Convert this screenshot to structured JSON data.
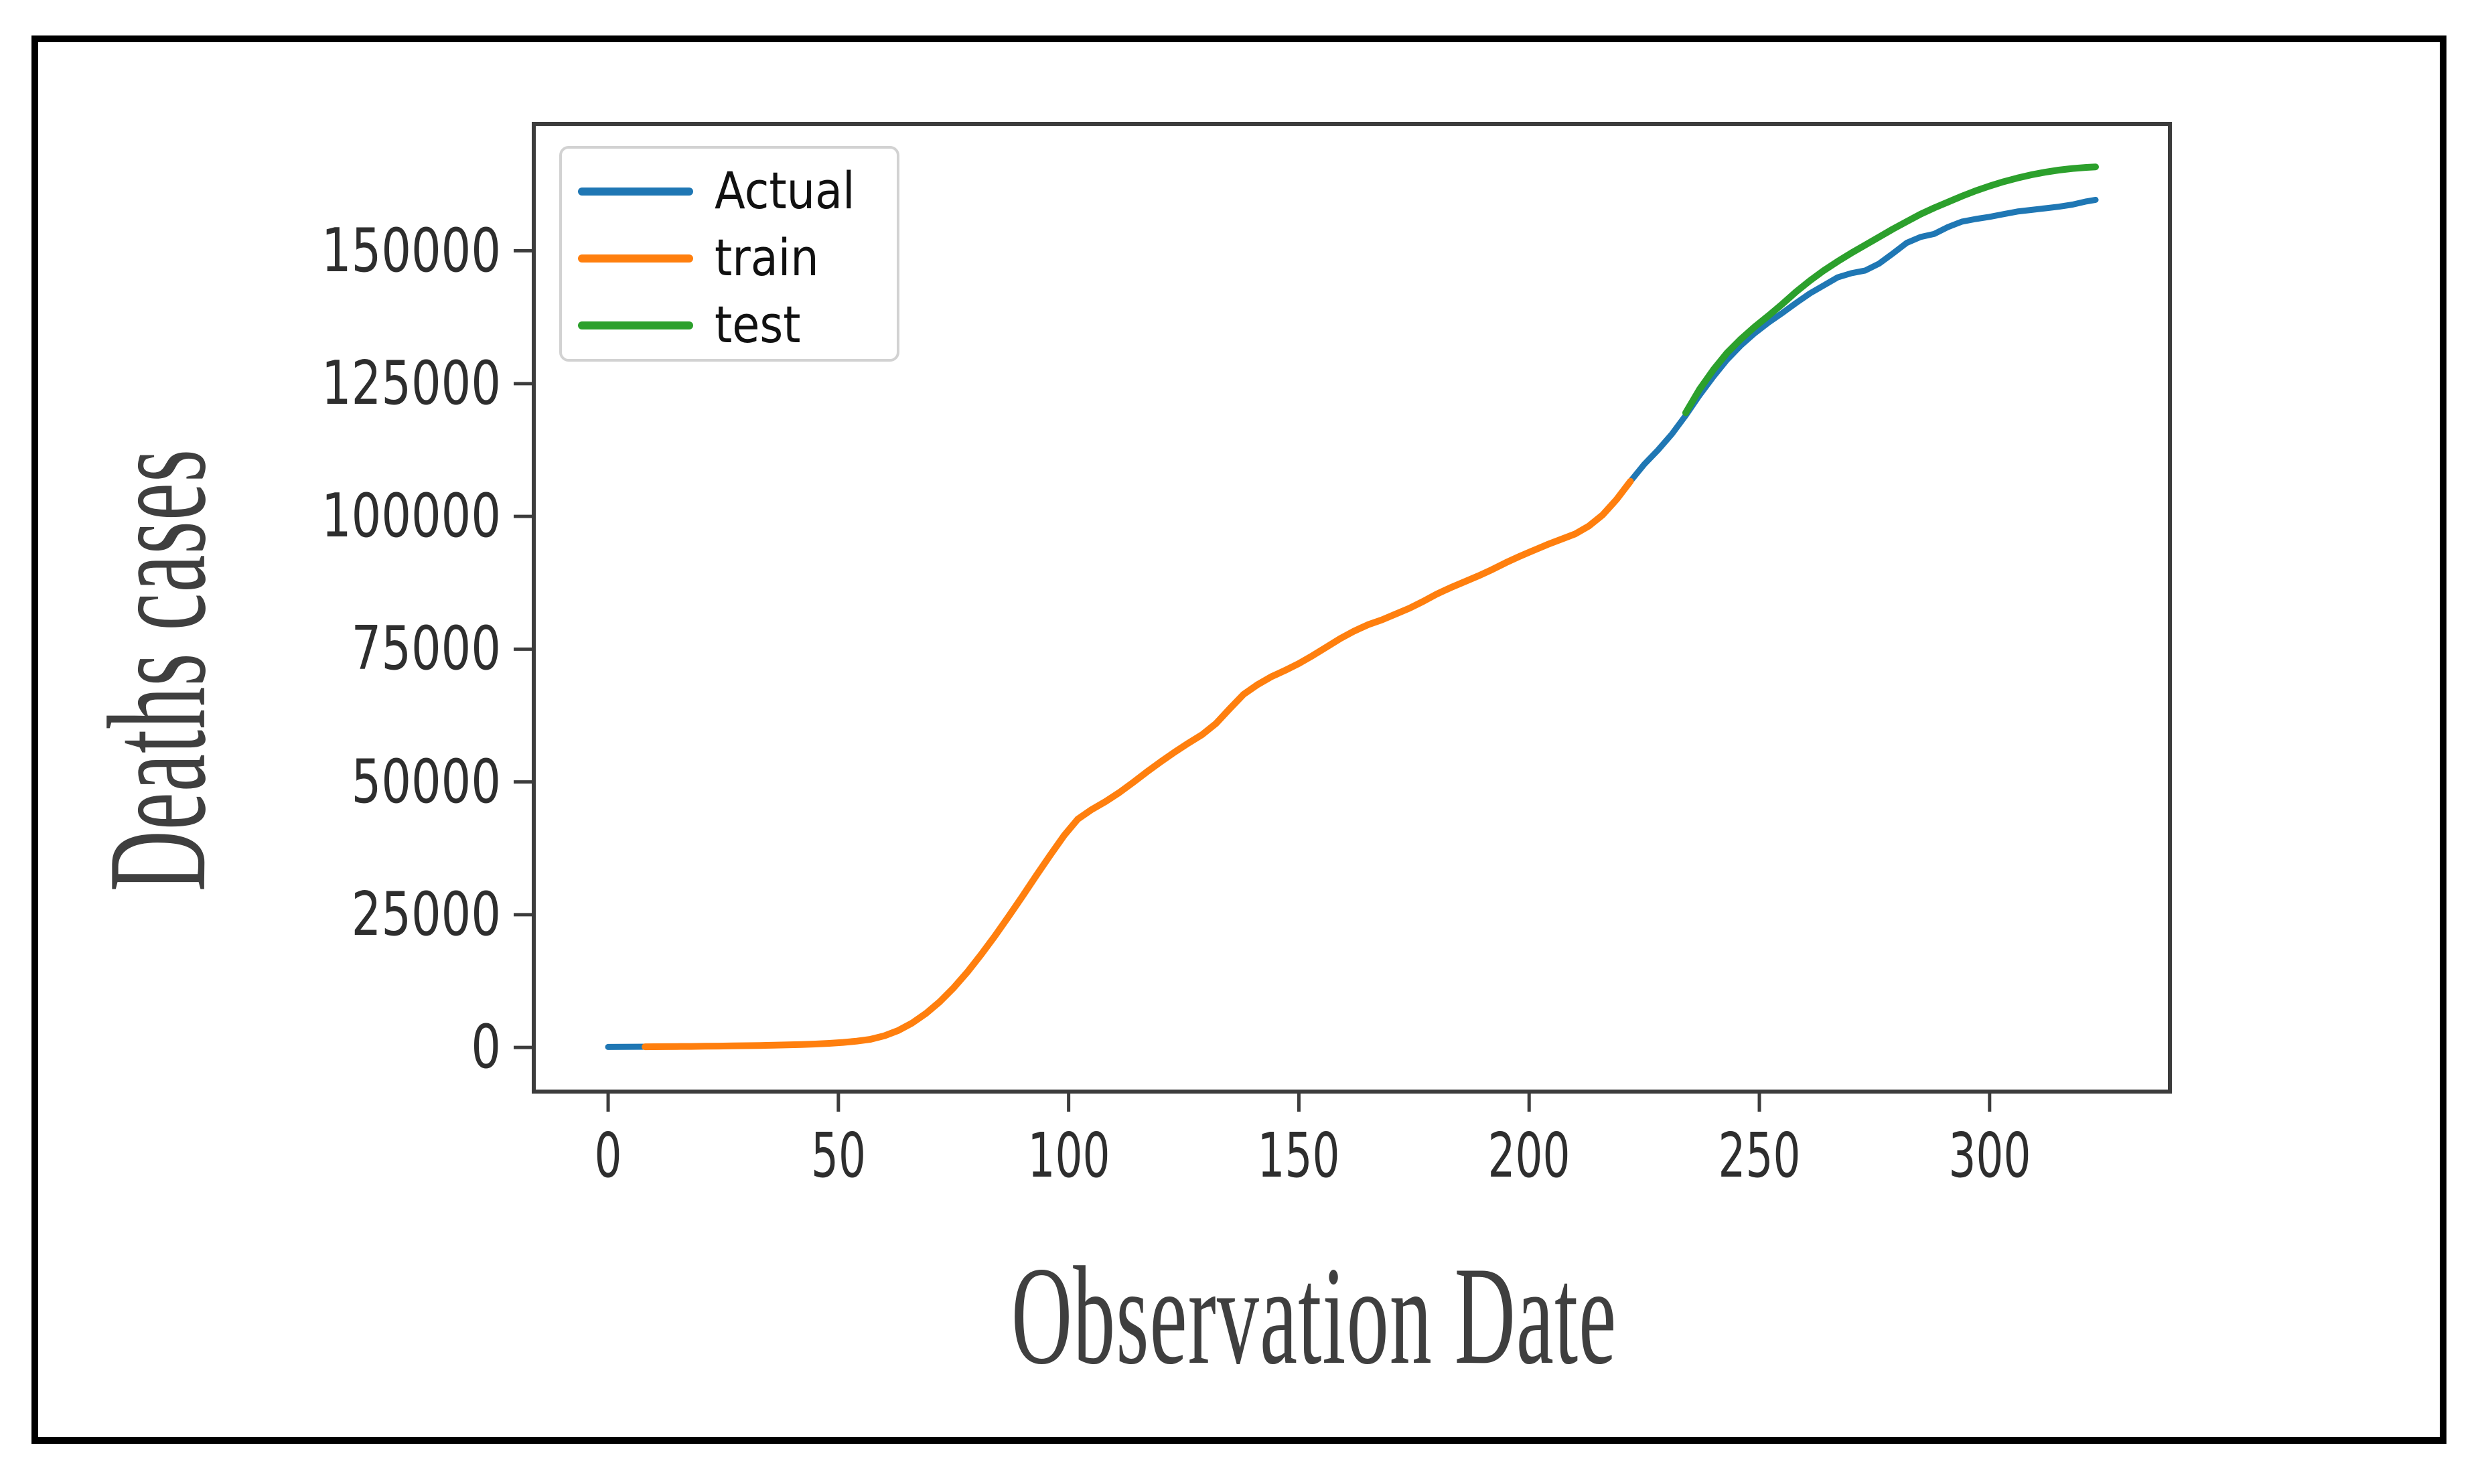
{
  "figure": {
    "x_axis_label": "Observation Date",
    "y_axis_label": "Deaths cases"
  },
  "legend": {
    "items": [
      {
        "label": "Actual",
        "color": "#1f77b4"
      },
      {
        "label": "train",
        "color": "#ff7f0e"
      },
      {
        "label": "test",
        "color": "#2ca02c"
      }
    ]
  },
  "axes": {
    "x_ticks": [
      "0",
      "50",
      "100",
      "150",
      "200",
      "250",
      "300"
    ],
    "y_ticks": [
      "0",
      "25000",
      "50000",
      "75000",
      "100000",
      "125000",
      "150000"
    ]
  },
  "chart_data": {
    "type": "line",
    "title": "",
    "xlabel": "Observation Date",
    "ylabel": "Deaths cases",
    "xlim": [
      -16.15,
      339.15
    ],
    "ylim": [
      -8300,
      173900
    ],
    "x_tick_values": [
      0,
      50,
      100,
      150,
      200,
      250,
      300
    ],
    "y_tick_values": [
      0,
      25000,
      50000,
      75000,
      100000,
      125000,
      150000
    ],
    "grid": false,
    "legend_position": "upper left",
    "axis_color": "#3c3c3c",
    "series": [
      {
        "name": "Actual",
        "color": "#1f77b4",
        "linewidth": 9,
        "x": [
          0,
          3,
          6,
          9,
          12,
          15,
          18,
          21,
          24,
          27,
          30,
          33,
          36,
          39,
          42,
          45,
          48,
          51,
          54,
          57,
          60,
          63,
          66,
          69,
          72,
          75,
          78,
          81,
          84,
          87,
          90,
          93,
          96,
          99,
          102,
          105,
          108,
          111,
          114,
          117,
          120,
          123,
          126,
          129,
          132,
          135,
          138,
          141,
          144,
          147,
          150,
          153,
          156,
          159,
          162,
          165,
          168,
          171,
          174,
          177,
          180,
          183,
          186,
          189,
          192,
          195,
          198,
          201,
          204,
          207,
          210,
          213,
          216,
          219,
          222,
          225,
          228,
          231,
          234,
          237,
          240,
          243,
          246,
          249,
          252,
          255,
          258,
          261,
          264,
          267,
          270,
          273,
          276,
          279,
          282,
          285,
          288,
          291,
          294,
          297,
          300,
          303,
          306,
          309,
          312,
          315,
          318,
          321,
          323
        ],
        "y": [
          100,
          120,
          130,
          150,
          160,
          180,
          200,
          230,
          260,
          300,
          340,
          380,
          430,
          490,
          560,
          650,
          780,
          960,
          1200,
          1550,
          2200,
          3200,
          4600,
          6400,
          8600,
          11200,
          14200,
          17500,
          21000,
          24700,
          28500,
          32400,
          36200,
          39900,
          43000,
          44800,
          46300,
          48000,
          49900,
          51900,
          53800,
          55600,
          57300,
          58900,
          61000,
          63800,
          66500,
          68300,
          69800,
          71000,
          72300,
          73800,
          75400,
          77000,
          78400,
          79600,
          80500,
          81600,
          82700,
          84000,
          85400,
          86600,
          87700,
          88800,
          90000,
          91300,
          92500,
          93600,
          94700,
          95700,
          96700,
          98200,
          100300,
          103200,
          106600,
          109800,
          112500,
          115500,
          119000,
          122800,
          126300,
          129500,
          132200,
          134500,
          136500,
          138300,
          140200,
          142000,
          143500,
          145000,
          145800,
          146300,
          147600,
          149500,
          151500,
          152600,
          153200,
          154500,
          155500,
          156000,
          156400,
          156900,
          157400,
          157700,
          158000,
          158300,
          158700,
          159300,
          159600
        ]
      },
      {
        "name": "train",
        "color": "#ff7f0e",
        "linewidth": 10,
        "x": [
          8,
          12,
          15,
          18,
          21,
          24,
          27,
          30,
          33,
          36,
          39,
          42,
          45,
          48,
          51,
          54,
          57,
          60,
          63,
          66,
          69,
          72,
          75,
          78,
          81,
          84,
          87,
          90,
          93,
          96,
          99,
          102,
          105,
          108,
          111,
          114,
          117,
          120,
          123,
          126,
          129,
          132,
          135,
          138,
          141,
          144,
          147,
          150,
          153,
          156,
          159,
          162,
          165,
          168,
          171,
          174,
          177,
          180,
          183,
          186,
          189,
          192,
          195,
          198,
          201,
          204,
          207,
          210,
          213,
          216,
          219,
          222
        ],
        "y": [
          140,
          160,
          180,
          200,
          230,
          260,
          300,
          340,
          380,
          430,
          490,
          560,
          650,
          780,
          960,
          1200,
          1550,
          2200,
          3200,
          4600,
          6400,
          8600,
          11200,
          14200,
          17500,
          21000,
          24700,
          28500,
          32400,
          36200,
          39900,
          43000,
          44800,
          46300,
          48000,
          49900,
          51900,
          53800,
          55600,
          57300,
          58900,
          61000,
          63800,
          66500,
          68300,
          69800,
          71000,
          72300,
          73800,
          75400,
          77000,
          78400,
          79600,
          80500,
          81600,
          82700,
          84000,
          85400,
          86600,
          87700,
          88800,
          90000,
          91300,
          92500,
          93600,
          94700,
          95700,
          96700,
          98200,
          100300,
          103200,
          106600
        ]
      },
      {
        "name": "test",
        "color": "#2ca02c",
        "linewidth": 10,
        "x": [
          234,
          237,
          240,
          243,
          246,
          249,
          252,
          255,
          258,
          261,
          264,
          267,
          270,
          273,
          276,
          279,
          282,
          285,
          288,
          291,
          294,
          297,
          300,
          303,
          306,
          309,
          312,
          315,
          318,
          321,
          323
        ],
        "y": [
          119500,
          123900,
          127600,
          130800,
          133400,
          135700,
          137800,
          140000,
          142300,
          144400,
          146300,
          148000,
          149600,
          151100,
          152600,
          154100,
          155500,
          156900,
          158100,
          159200,
          160300,
          161300,
          162200,
          163000,
          163700,
          164300,
          164800,
          165200,
          165500,
          165700,
          165800
        ]
      }
    ]
  }
}
